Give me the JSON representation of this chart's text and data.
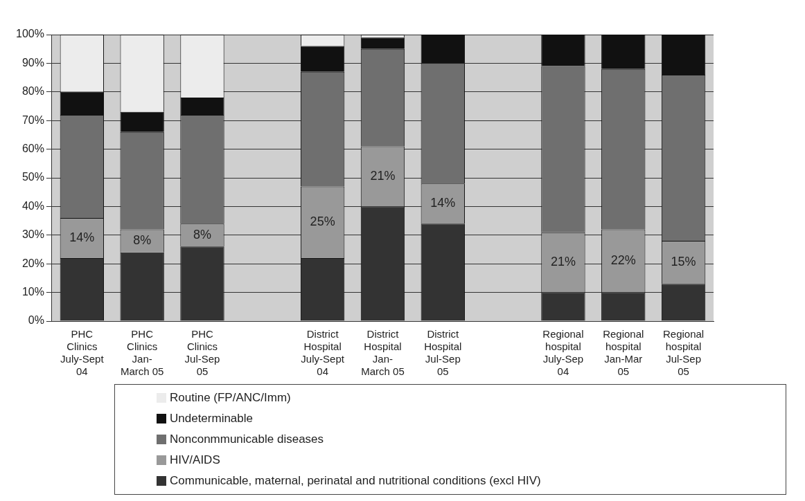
{
  "chart_data": {
    "type": "bar",
    "stacked": true,
    "categories": [
      "PHC Clinics July-Sept 04",
      "PHC Clinics Jan- March 05",
      "PHC Clinics Jul-Sep 05",
      null,
      "District Hospital July-Sept 04",
      "District Hospital Jan- March 05",
      "District Hospital Jul-Sep 05",
      null,
      "Regional hospital July-Sep 04",
      "Regional hospital Jan-Mar 05",
      "Regional hospital Jul-Sep 05"
    ],
    "series": [
      {
        "name": "Communicable, maternal, perinatal and nutritional conditions (excl HIV)",
        "color": "#333333",
        "values": [
          22,
          24,
          26,
          null,
          22,
          40,
          34,
          null,
          10,
          10,
          13
        ]
      },
      {
        "name": "HIV/AIDS",
        "color": "#999999",
        "values": [
          14,
          8,
          8,
          null,
          25,
          21,
          14,
          null,
          21,
          22,
          15
        ],
        "value_labels": [
          "14%",
          "8%",
          "8%",
          null,
          "25%",
          "21%",
          "14%",
          null,
          "21%",
          "22%",
          "15%"
        ]
      },
      {
        "name": "Nonconmmunicable diseases",
        "color": "#6f6f6f",
        "values": [
          36,
          34,
          38,
          null,
          40,
          34,
          42,
          null,
          58,
          56,
          58
        ]
      },
      {
        "name": "Undeterminable",
        "color": "#111111",
        "values": [
          8,
          7,
          6,
          null,
          9,
          4,
          10,
          null,
          11,
          12,
          14
        ]
      },
      {
        "name": "Routine (FP/ANC/Imm)",
        "color": "#ececec",
        "values": [
          20,
          27,
          22,
          null,
          4,
          1,
          0,
          null,
          0,
          0,
          0
        ]
      }
    ],
    "ylim": [
      0,
      100
    ],
    "yticks": [
      {
        "value": 0,
        "label": "0%"
      },
      {
        "value": 10,
        "label": "10%"
      },
      {
        "value": 20,
        "label": "20%"
      },
      {
        "value": 30,
        "label": "30%"
      },
      {
        "value": 40,
        "label": "40%"
      },
      {
        "value": 50,
        "label": "50%"
      },
      {
        "value": 60,
        "label": "60%"
      },
      {
        "value": 70,
        "label": "70%"
      },
      {
        "value": 80,
        "label": "80%"
      },
      {
        "value": 90,
        "label": "90%"
      },
      {
        "value": 100,
        "label": "100%"
      }
    ],
    "grid": "y",
    "legend": "bottom"
  }
}
